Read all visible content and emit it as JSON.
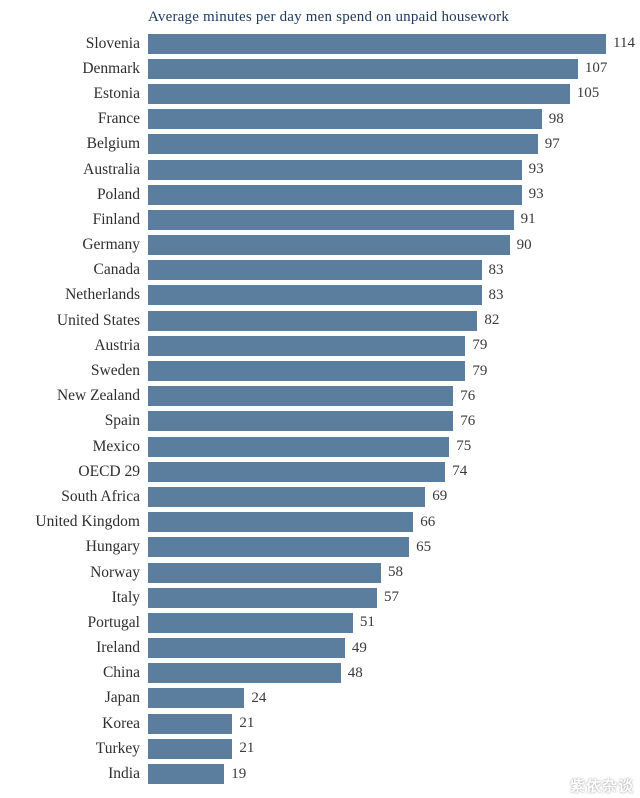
{
  "chart_data": {
    "type": "bar",
    "orientation": "horizontal",
    "title": "Average minutes per day men spend on unpaid housework",
    "categories": [
      "Slovenia",
      "Denmark",
      "Estonia",
      "France",
      "Belgium",
      "Australia",
      "Poland",
      "Finland",
      "Germany",
      "Canada",
      "Netherlands",
      "United States",
      "Austria",
      "Sweden",
      "New Zealand",
      "Spain",
      "Mexico",
      "OECD 29",
      "South Africa",
      "United Kingdom",
      "Hungary",
      "Norway",
      "Italy",
      "Portugal",
      "Ireland",
      "China",
      "Japan",
      "Korea",
      "Turkey",
      "India"
    ],
    "values": [
      114,
      107,
      105,
      98,
      97,
      93,
      93,
      91,
      90,
      83,
      83,
      82,
      79,
      79,
      76,
      76,
      75,
      74,
      69,
      66,
      65,
      58,
      57,
      51,
      49,
      48,
      24,
      21,
      21,
      19
    ],
    "xlim": [
      0,
      120
    ],
    "value_labels_shown": true,
    "grid": false,
    "legend": "none",
    "bar_color": "#5b7d9e",
    "title_color": "#1e3a5f",
    "label_color": "#2e2e2e",
    "value_color": "#3a3a3a"
  },
  "watermark": "紫依杂谈"
}
